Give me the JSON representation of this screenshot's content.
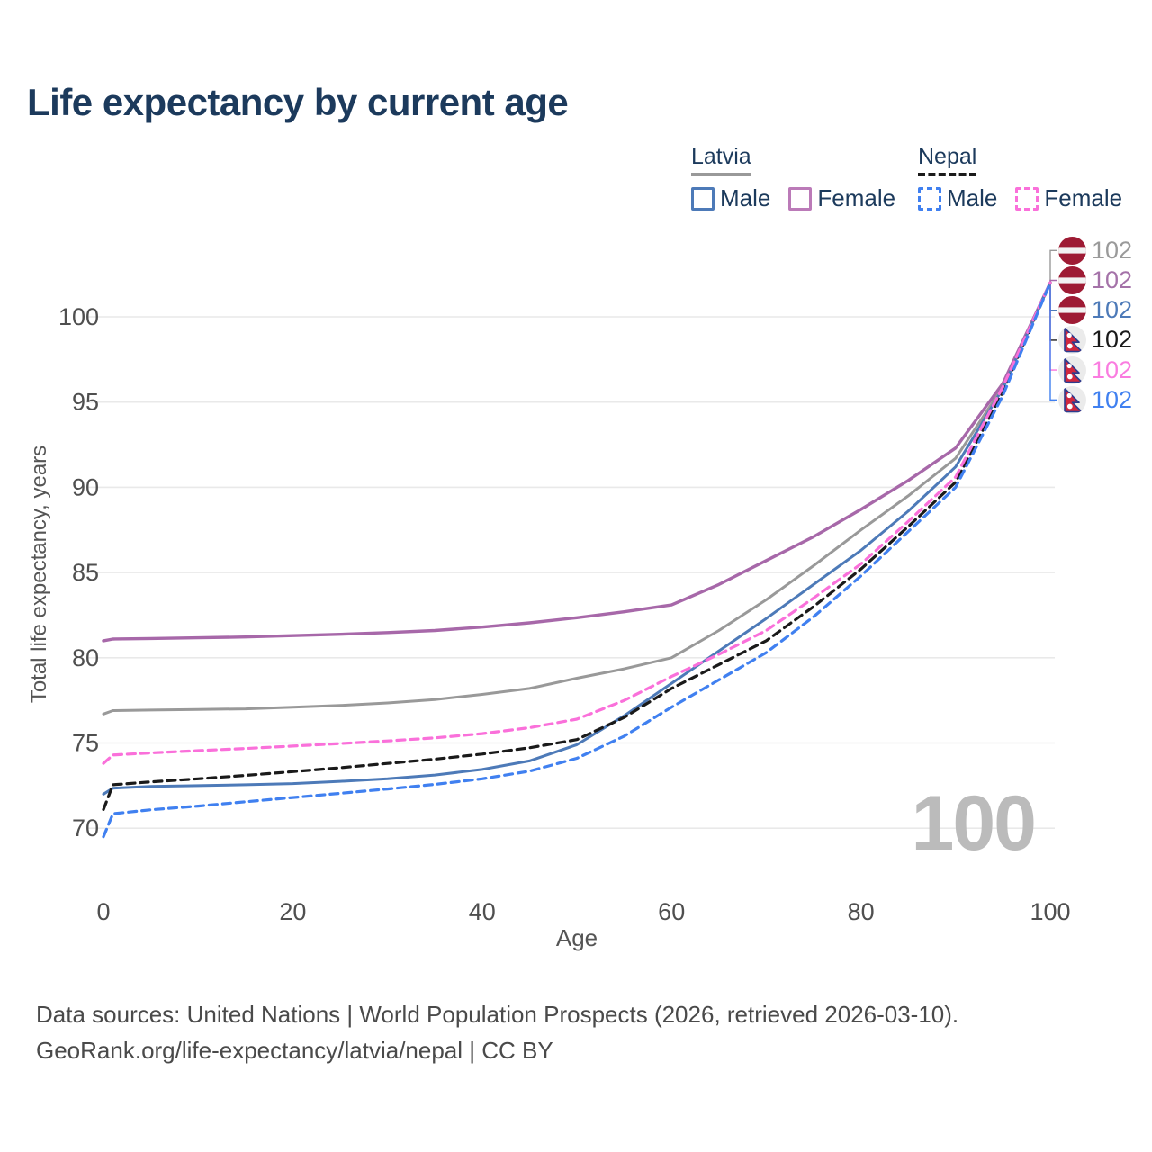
{
  "title": "Life expectancy by current age",
  "legend": {
    "groups": [
      {
        "country": "Latvia",
        "style": "solid",
        "underline_color": "#999999",
        "items": [
          {
            "label": "Male",
            "color": "#4d7ab8",
            "dashed": false
          },
          {
            "label": "Female",
            "color": "#bb7ab8",
            "dashed": false
          }
        ]
      },
      {
        "country": "Nepal",
        "style": "dashed",
        "underline_color": "#1a1a1a",
        "items": [
          {
            "label": "Male",
            "color": "#4080f0",
            "dashed": true
          },
          {
            "label": "Female",
            "color": "#fa70da",
            "dashed": true
          }
        ]
      }
    ]
  },
  "chart_data": {
    "type": "line",
    "title": "Life expectancy by current age",
    "xlabel": "Age",
    "ylabel": "Total life expectancy, years",
    "xlim": [
      0,
      100
    ],
    "ylim": [
      68,
      103
    ],
    "x_ticks": [
      0,
      20,
      40,
      60,
      80,
      100
    ],
    "y_ticks": [
      70,
      75,
      80,
      85,
      90,
      95,
      100
    ],
    "grid": "horizontal-only",
    "age_indicator": "100",
    "series": [
      {
        "id": "latvia-all",
        "name": "Latvia (both sexes)",
        "country": "latvia",
        "color": "#999999",
        "dashed": false,
        "width": 3,
        "end_label": "102",
        "label_color": "#9a9a9a",
        "points": [
          [
            0,
            76.7
          ],
          [
            1,
            76.9
          ],
          [
            5,
            76.93
          ],
          [
            10,
            76.97
          ],
          [
            15,
            77.0
          ],
          [
            20,
            77.1
          ],
          [
            25,
            77.2
          ],
          [
            30,
            77.35
          ],
          [
            35,
            77.55
          ],
          [
            40,
            77.85
          ],
          [
            45,
            78.2
          ],
          [
            50,
            78.8
          ],
          [
            55,
            79.35
          ],
          [
            60,
            80.0
          ],
          [
            65,
            81.6
          ],
          [
            70,
            83.4
          ],
          [
            75,
            85.4
          ],
          [
            80,
            87.5
          ],
          [
            85,
            89.5
          ],
          [
            90,
            91.7
          ],
          [
            95,
            95.9
          ],
          [
            100,
            102
          ]
        ]
      },
      {
        "id": "latvia-female",
        "name": "Latvia Female",
        "country": "latvia",
        "color": "#a768a9",
        "dashed": false,
        "width": 3.4,
        "end_label": "102",
        "label_color": "#a472a8",
        "points": [
          [
            0,
            81.0
          ],
          [
            1,
            81.1
          ],
          [
            5,
            81.13
          ],
          [
            10,
            81.17
          ],
          [
            15,
            81.22
          ],
          [
            20,
            81.3
          ],
          [
            25,
            81.38
          ],
          [
            30,
            81.48
          ],
          [
            35,
            81.6
          ],
          [
            40,
            81.8
          ],
          [
            45,
            82.05
          ],
          [
            50,
            82.35
          ],
          [
            55,
            82.7
          ],
          [
            60,
            83.1
          ],
          [
            65,
            84.3
          ],
          [
            70,
            85.7
          ],
          [
            75,
            87.1
          ],
          [
            80,
            88.7
          ],
          [
            85,
            90.4
          ],
          [
            90,
            92.3
          ],
          [
            95,
            96.1
          ],
          [
            100,
            102
          ]
        ]
      },
      {
        "id": "latvia-male",
        "name": "Latvia Male",
        "country": "latvia",
        "color": "#4d7ab8",
        "dashed": false,
        "width": 3,
        "end_label": "102",
        "label_color": "#4d7ab8",
        "points": [
          [
            0,
            72.0
          ],
          [
            1,
            72.35
          ],
          [
            5,
            72.45
          ],
          [
            10,
            72.5
          ],
          [
            15,
            72.55
          ],
          [
            20,
            72.62
          ],
          [
            25,
            72.75
          ],
          [
            30,
            72.9
          ],
          [
            35,
            73.12
          ],
          [
            40,
            73.45
          ],
          [
            45,
            73.95
          ],
          [
            50,
            74.9
          ],
          [
            55,
            76.6
          ],
          [
            60,
            78.5
          ],
          [
            65,
            80.4
          ],
          [
            70,
            82.3
          ],
          [
            75,
            84.3
          ],
          [
            80,
            86.3
          ],
          [
            85,
            88.6
          ],
          [
            90,
            91.2
          ],
          [
            95,
            95.8
          ],
          [
            100,
            102
          ]
        ]
      },
      {
        "id": "nepal-all",
        "name": "Nepal (both sexes)",
        "country": "nepal",
        "color": "#1a1a1a",
        "dashed": true,
        "width": 3.2,
        "end_label": "102",
        "label_color": "#1a1a1a",
        "points": [
          [
            0,
            71.1
          ],
          [
            1,
            72.55
          ],
          [
            5,
            72.72
          ],
          [
            10,
            72.9
          ],
          [
            15,
            73.1
          ],
          [
            20,
            73.32
          ],
          [
            25,
            73.55
          ],
          [
            30,
            73.8
          ],
          [
            35,
            74.05
          ],
          [
            40,
            74.35
          ],
          [
            45,
            74.72
          ],
          [
            50,
            75.2
          ],
          [
            55,
            76.5
          ],
          [
            60,
            78.2
          ],
          [
            65,
            79.6
          ],
          [
            70,
            81.0
          ],
          [
            75,
            83.0
          ],
          [
            80,
            85.2
          ],
          [
            85,
            87.7
          ],
          [
            90,
            90.3
          ],
          [
            95,
            95.6
          ],
          [
            100,
            102
          ]
        ]
      },
      {
        "id": "nepal-female",
        "name": "Nepal Female",
        "country": "nepal",
        "color": "#fa70da",
        "dashed": true,
        "width": 3.2,
        "end_label": "102",
        "label_color": "#fa7ce0",
        "points": [
          [
            0,
            73.8
          ],
          [
            1,
            74.3
          ],
          [
            5,
            74.42
          ],
          [
            10,
            74.55
          ],
          [
            15,
            74.68
          ],
          [
            20,
            74.82
          ],
          [
            25,
            74.97
          ],
          [
            30,
            75.12
          ],
          [
            35,
            75.3
          ],
          [
            40,
            75.55
          ],
          [
            45,
            75.9
          ],
          [
            50,
            76.4
          ],
          [
            55,
            77.5
          ],
          [
            60,
            78.9
          ],
          [
            65,
            80.2
          ],
          [
            70,
            81.6
          ],
          [
            75,
            83.5
          ],
          [
            80,
            85.5
          ],
          [
            85,
            88.0
          ],
          [
            90,
            90.6
          ],
          [
            95,
            95.9
          ],
          [
            100,
            102
          ]
        ]
      },
      {
        "id": "nepal-male",
        "name": "Nepal Male",
        "country": "nepal",
        "color": "#4080f0",
        "dashed": true,
        "width": 3.2,
        "end_label": "102",
        "label_color": "#4080f0",
        "points": [
          [
            0,
            69.5
          ],
          [
            1,
            70.85
          ],
          [
            5,
            71.08
          ],
          [
            10,
            71.3
          ],
          [
            15,
            71.55
          ],
          [
            20,
            71.8
          ],
          [
            25,
            72.05
          ],
          [
            30,
            72.3
          ],
          [
            35,
            72.57
          ],
          [
            40,
            72.9
          ],
          [
            45,
            73.35
          ],
          [
            50,
            74.1
          ],
          [
            55,
            75.4
          ],
          [
            60,
            77.1
          ],
          [
            65,
            78.7
          ],
          [
            70,
            80.3
          ],
          [
            75,
            82.4
          ],
          [
            80,
            84.8
          ],
          [
            85,
            87.4
          ],
          [
            90,
            90.0
          ],
          [
            95,
            95.4
          ],
          [
            100,
            102
          ]
        ]
      }
    ]
  },
  "flags": {
    "latvia": {
      "red": "#9E1B34",
      "white": "#f2f2f2"
    },
    "nepal": {
      "crimson": "#d0273e",
      "blue": "#2b3c8f",
      "white": "#ffffff",
      "bg": "#ebebeb"
    }
  },
  "colors": {
    "grid": "#e9e9e9",
    "tick_text": "#4f4f4f",
    "axis_title": "#555555",
    "title_text": "#1c3a5c",
    "age_indicator": "#bbbbbb"
  },
  "footer": {
    "line1": "Data sources: United Nations | World Population Prospects (2026, retrieved 2026-03-10).",
    "line2": "GeoRank.org/life-expectancy/latvia/nepal | CC BY"
  }
}
